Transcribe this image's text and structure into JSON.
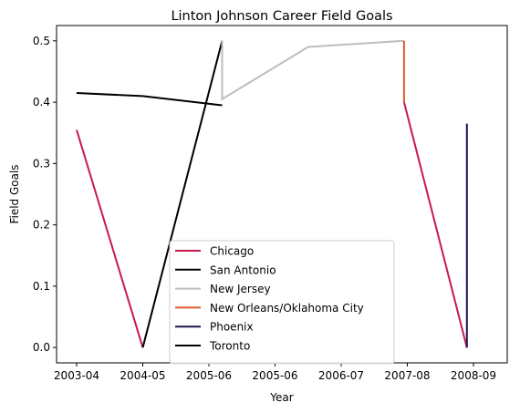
{
  "chart_data": {
    "type": "line",
    "title": "Linton Johnson Career Field Goals",
    "xlabel": "Year",
    "ylabel": "Field Goals",
    "x_ticks": [
      "2003-04",
      "2004-05",
      "2005-06",
      "2005-06",
      "2006-07",
      "2007-08",
      "2008-09"
    ],
    "ylim": [
      -0.025,
      0.525
    ],
    "y_ticks": [
      0.0,
      0.1,
      0.2,
      0.3,
      0.4,
      0.5
    ],
    "y_tick_labels": [
      "0.0",
      "0.1",
      "0.2",
      "0.3",
      "0.4",
      "0.5"
    ],
    "grid": false,
    "legend_position": "lower-center",
    "series": [
      {
        "name": "Chicago",
        "color": "#c81a4a",
        "points": [
          [
            0.0,
            0.355
          ],
          [
            1.0,
            0.0
          ]
        ]
      },
      {
        "name": "Chicago",
        "color": "#c81a4a",
        "points": [
          [
            4.95,
            0.4
          ],
          [
            5.9,
            0.0
          ]
        ],
        "in_legend": false
      },
      {
        "name": "San Antonio",
        "color": "#000000",
        "points": [
          [
            1.0,
            0.0
          ],
          [
            2.2,
            0.5
          ]
        ]
      },
      {
        "name": "New Jersey",
        "color": "#bdbdbd",
        "points": [
          [
            2.2,
            0.5
          ],
          [
            2.2,
            0.405
          ],
          [
            3.5,
            0.49
          ],
          [
            4.95,
            0.5
          ]
        ]
      },
      {
        "name": "New Orleans/Oklahoma City",
        "color": "#e05a2a",
        "points": [
          [
            4.95,
            0.5
          ],
          [
            4.95,
            0.4
          ]
        ]
      },
      {
        "name": "Phoenix",
        "color": "#1c1450",
        "points": [
          [
            5.9,
            0.0
          ],
          [
            5.9,
            0.365
          ]
        ]
      },
      {
        "name": "Toronto",
        "color": "#000000",
        "points": [
          [
            0.0,
            0.415
          ],
          [
            1.0,
            0.41
          ],
          [
            2.2,
            0.395
          ]
        ]
      }
    ]
  }
}
